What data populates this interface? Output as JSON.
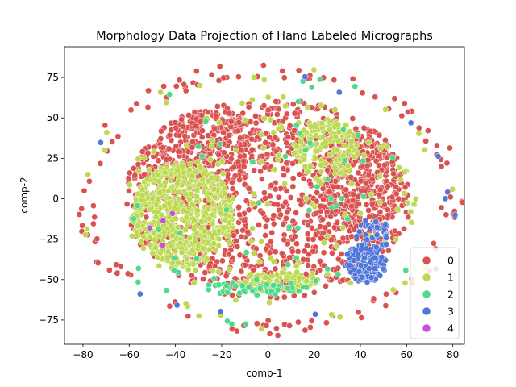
{
  "chart_data": {
    "type": "scatter",
    "title": "Morphology Data Projection of Hand Labeled Micrographs",
    "xlabel": "comp-1",
    "ylabel": "comp-2",
    "xlim": [
      -88,
      85
    ],
    "ylim": [
      -90,
      94
    ],
    "xticks": [
      -80,
      -60,
      -40,
      -20,
      0,
      20,
      40,
      60,
      80
    ],
    "yticks": [
      -75,
      -50,
      -25,
      0,
      25,
      50,
      75
    ],
    "grid": false,
    "legend_position": "lower-right",
    "series": [
      {
        "name": "0",
        "color": "#d9524f"
      },
      {
        "name": "1",
        "color": "#bcd94f"
      },
      {
        "name": "2",
        "color": "#4fd98a"
      },
      {
        "name": "3",
        "color": "#4f77d9"
      },
      {
        "name": "4",
        "color": "#c94fd9"
      }
    ],
    "clusters": [
      {
        "series": "0",
        "shape": "disk",
        "center": [
          0,
          0
        ],
        "radius": [
          62,
          62
        ],
        "count": 1100
      },
      {
        "series": "0",
        "shape": "disk",
        "center": [
          -25,
          30
        ],
        "radius": [
          25,
          25
        ],
        "count": 260
      },
      {
        "series": "0",
        "shape": "disk",
        "center": [
          40,
          10
        ],
        "radius": [
          18,
          35
        ],
        "count": 260
      },
      {
        "series": "0",
        "shape": "ring",
        "center": [
          0,
          0
        ],
        "radius": [
          80,
          80
        ],
        "count": 120
      },
      {
        "series": "1",
        "shape": "disk",
        "center": [
          -37,
          -10
        ],
        "radius": [
          22,
          32
        ],
        "count": 560
      },
      {
        "series": "1",
        "shape": "disk",
        "center": [
          5,
          -52
        ],
        "radius": [
          18,
          6
        ],
        "count": 90
      },
      {
        "series": "1",
        "shape": "disk",
        "center": [
          25,
          30
        ],
        "radius": [
          14,
          20
        ],
        "count": 140
      },
      {
        "series": "1",
        "shape": "disk",
        "center": [
          0,
          0
        ],
        "radius": [
          65,
          65
        ],
        "count": 150
      },
      {
        "series": "1",
        "shape": "ring",
        "center": [
          0,
          0
        ],
        "radius": [
          78,
          78
        ],
        "count": 25
      },
      {
        "series": "2",
        "shape": "disk",
        "center": [
          -5,
          -55
        ],
        "radius": [
          22,
          5
        ],
        "count": 45
      },
      {
        "series": "2",
        "shape": "disk",
        "center": [
          0,
          0
        ],
        "radius": [
          62,
          62
        ],
        "count": 45
      },
      {
        "series": "2",
        "shape": "ring",
        "center": [
          0,
          0
        ],
        "radius": [
          75,
          75
        ],
        "count": 12
      },
      {
        "series": "3",
        "shape": "disk",
        "center": [
          42,
          -40
        ],
        "radius": [
          9,
          12
        ],
        "count": 150
      },
      {
        "series": "3",
        "shape": "disk",
        "center": [
          45,
          -22
        ],
        "radius": [
          8,
          10
        ],
        "count": 40
      },
      {
        "series": "3",
        "shape": "ring",
        "center": [
          0,
          0
        ],
        "radius": [
          77,
          77
        ],
        "count": 12
      },
      {
        "series": "4",
        "shape": "disk",
        "center": [
          -40,
          -20
        ],
        "radius": [
          15,
          15
        ],
        "count": 4
      }
    ]
  }
}
